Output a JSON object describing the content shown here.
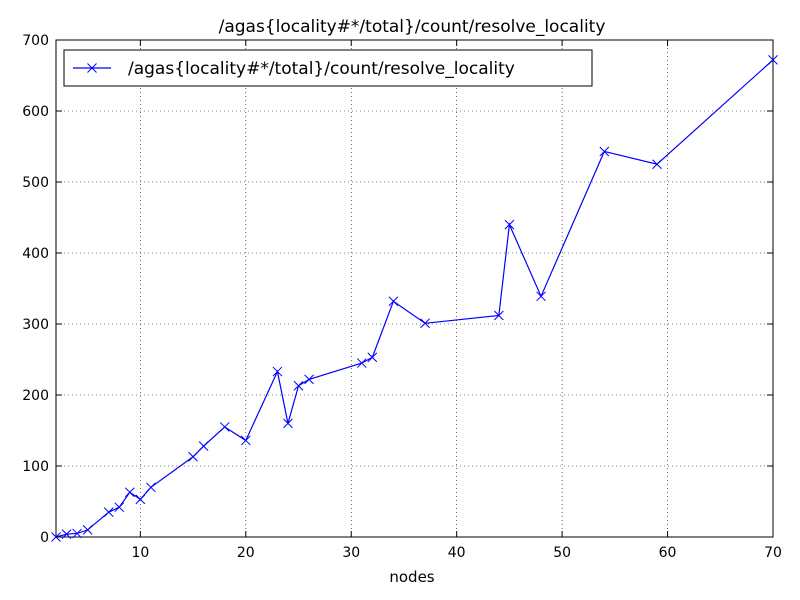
{
  "chart_data": {
    "type": "line",
    "title": "/agas{locality#*/total}/count/resolve_locality",
    "xlabel": "nodes",
    "ylabel": "",
    "xlim": [
      2,
      70
    ],
    "ylim": [
      0,
      700
    ],
    "xticks": [
      10,
      20,
      30,
      40,
      50,
      60,
      70
    ],
    "yticks": [
      0,
      100,
      200,
      300,
      400,
      500,
      600,
      700
    ],
    "grid": true,
    "legend_position": "top-left",
    "series": [
      {
        "name": "/agas{locality#*/total}/count/resolve_locality",
        "color": "#0000ff",
        "marker": "x",
        "x": [
          2,
          3,
          4,
          5,
          7,
          8,
          9,
          10,
          11,
          15,
          16,
          18,
          20,
          23,
          24,
          25,
          26,
          31,
          32,
          34,
          37,
          44,
          45,
          48,
          54,
          59,
          70
        ],
        "y": [
          0,
          4,
          5,
          10,
          35,
          42,
          63,
          53,
          70,
          113,
          128,
          155,
          136,
          233,
          160,
          213,
          222,
          245,
          253,
          332,
          301,
          312,
          440,
          339,
          543,
          525,
          672
        ]
      }
    ]
  }
}
